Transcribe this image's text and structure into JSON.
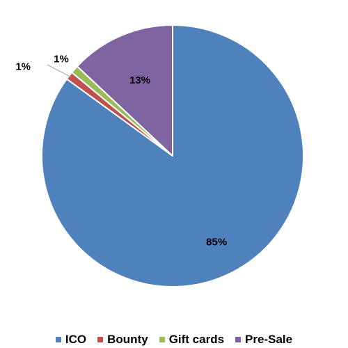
{
  "chart_data": {
    "type": "pie",
    "title": "",
    "categories": [
      "ICO",
      "Bounty",
      "Gift cards",
      "Pre-Sale"
    ],
    "values": [
      85,
      1,
      1,
      13
    ],
    "value_labels": [
      "85%",
      "1%",
      "1%",
      "13%"
    ],
    "colors": [
      "#4F81BD",
      "#C0504D",
      "#9BBB59",
      "#8064A2"
    ],
    "start_angle": "12 o'clock",
    "direction": "clockwise",
    "legend": {
      "position": "bottom",
      "items": [
        "ICO",
        "Bounty",
        "Gift cards",
        "Pre-Sale"
      ]
    }
  }
}
